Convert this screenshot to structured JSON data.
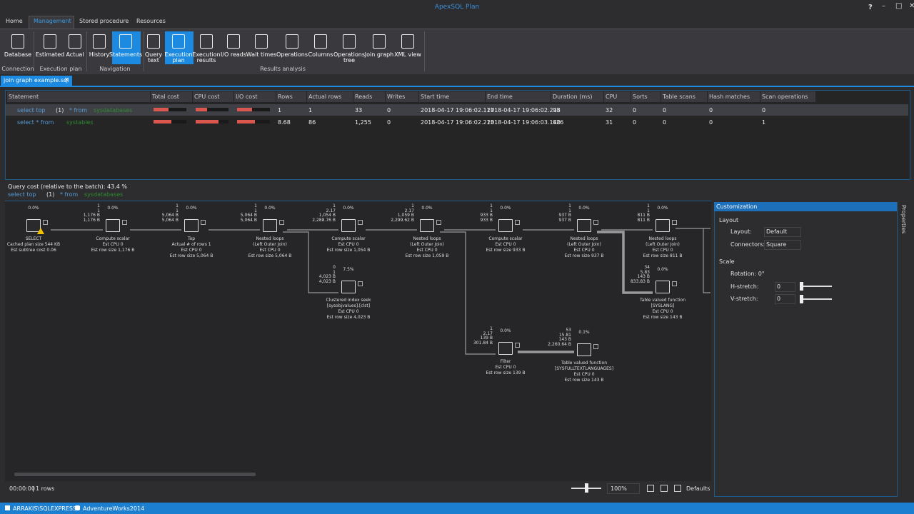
{
  "app_title": "ApexSQL Plan",
  "window_controls": [
    "?"
  ],
  "menu_tabs": [
    "Home",
    "Management",
    "Stored procedure",
    "Resources"
  ],
  "ribbon": {
    "groups": [
      {
        "label": "Connection",
        "buttons": [
          {
            "label": [
              "Database"
            ]
          }
        ]
      },
      {
        "label": "Execution plan",
        "buttons": [
          {
            "label": [
              "Estimated"
            ]
          },
          {
            "label": [
              "Actual"
            ]
          }
        ]
      },
      {
        "label": "Navigation",
        "buttons": [
          {
            "label": [
              "History"
            ]
          },
          {
            "label": [
              "Statements"
            ]
          }
        ]
      },
      {
        "label": "Results analysis",
        "buttons": [
          {
            "label": [
              "Query",
              "text"
            ]
          },
          {
            "label": [
              "Execution",
              "plan"
            ]
          },
          {
            "label": [
              "Execution",
              "results"
            ]
          },
          {
            "label": [
              "I/O reads"
            ]
          },
          {
            "label": [
              "Wait times"
            ]
          },
          {
            "label": [
              "Operations"
            ]
          },
          {
            "label": [
              "Columns"
            ]
          },
          {
            "label": [
              "Operations",
              "tree"
            ]
          },
          {
            "label": [
              "Join graph"
            ]
          },
          {
            "label": [
              "XML view"
            ]
          }
        ]
      }
    ]
  },
  "document_tab": "join graph example.sql",
  "statements_table": {
    "columns": [
      "Statement",
      "Total cost",
      "CPU cost",
      "I/O cost",
      "Rows",
      "Actual rows",
      "Reads",
      "Writes",
      "Start time",
      "End time",
      "Duration (ms)",
      "CPU",
      "Sorts",
      "Table scans",
      "Hash matches",
      "Scan operations"
    ],
    "rows": [
      {
        "statement": [
          {
            "text": "select top",
            "color": "#569cd6"
          },
          {
            "text": "(1)",
            "color": "#e0e0e0"
          },
          {
            "text": "* from",
            "color": "#569cd6"
          },
          {
            "text": "sysdatabases",
            "color": "#2e8b2e"
          }
        ],
        "costs": [
          45,
          35,
          45
        ],
        "cells": [
          "1",
          "1",
          "33",
          "0",
          "2018-04-17 19:06:02.117",
          "2018-04-17 19:06:02.213",
          "98",
          "32",
          "0",
          "0",
          "0",
          "0"
        ]
      },
      {
        "statement": [
          {
            "text": "select * from",
            "color": "#569cd6"
          },
          {
            "text": "systables",
            "color": "#2e8b2e"
          }
        ],
        "costs": [
          55,
          70,
          55
        ],
        "cells": [
          "8.68",
          "86",
          "1,255",
          "0",
          "2018-04-17 19:06:02.213",
          "2018-04-17 19:06:03.140",
          "926",
          "31",
          "0",
          "0",
          "0",
          "1"
        ]
      }
    ]
  },
  "query_cost": "Query cost (relative to the batch):  43.4 %",
  "query_text": [
    {
      "text": "select top",
      "color": "#569cd6"
    },
    {
      "text": "(1)",
      "color": "#e0e0e0"
    },
    {
      "text": "* from",
      "color": "#569cd6"
    },
    {
      "text": "sysdatabases",
      "color": "#2e8b2e"
    }
  ],
  "plan_nodes": [
    {
      "percent": "0.0%",
      "stats": [],
      "lines": [
        "SELECT",
        "Cached plan size  544 KB",
        "Est subtree cost  0.06"
      ]
    },
    {
      "percent": "0.0%",
      "stats": [
        "1",
        "1",
        "1,176 B",
        "1,176 B"
      ],
      "lines": [
        "Compute scalar",
        "Est CPU  0",
        "Est row size  1,176 B"
      ]
    },
    {
      "percent": "0.0%",
      "stats": [
        "1",
        "1",
        "5,064 B",
        "5,064 B"
      ],
      "lines": [
        "Top",
        "Actual # of rows  1",
        "Est CPU  0",
        "Est row size  5,064 B"
      ]
    },
    {
      "percent": "0.0%",
      "stats": [
        "1",
        "1",
        "5,064 B",
        "5,064 B"
      ],
      "lines": [
        "Nested loops",
        "(Left Outer Join)",
        "Est CPU  0",
        "Est row size  5,064 B"
      ]
    },
    {
      "percent": "0.0%",
      "stats": [
        "1",
        "2.17",
        "1,054 B",
        "2,288.76 B"
      ],
      "lines": [
        "Compute scalar",
        "Est CPU  0",
        "Est row size  1,054 B"
      ]
    },
    {
      "percent": "0.0%",
      "stats": [
        "1",
        "2.17",
        "1,059 B",
        "2,299.62 B"
      ],
      "lines": [
        "Nested loops",
        "(Left Outer Join)",
        "Est CPU  0",
        "Est row size  1,059 B"
      ]
    },
    {
      "percent": "0.0%",
      "stats": [
        "1",
        "1",
        "933 B",
        "933 B"
      ],
      "lines": [
        "Compute scalar",
        "Est CPU  0",
        "Est row size  933 B"
      ]
    },
    {
      "percent": "0.0%",
      "stats": [
        "1",
        "1",
        "937 B",
        "937 B"
      ],
      "lines": [
        "Nested loops",
        "(Left Outer Join)",
        "Est CPU  0",
        "Est row size  937 B"
      ]
    },
    {
      "percent": "0.0%",
      "stats": [
        "1",
        "1",
        "811 B",
        "811 B"
      ],
      "lines": [
        "Nested loops",
        "(Left Outer Join)",
        "Est CPU  0",
        "Est row size  811 B"
      ]
    },
    {
      "percent": "7.5%",
      "stats": [
        "0",
        "1",
        "4,023 B",
        "4,023 B"
      ],
      "lines": [
        "Clustered index seek",
        "[sysobjvalues].[clst]",
        "Est CPU  0",
        "Est row size  4,023 B"
      ]
    },
    {
      "percent": "0.0%",
      "stats": [
        "34",
        "5.83",
        "143 B",
        "833.83 B"
      ],
      "lines": [
        "Table valued function",
        "[SYSLANG]",
        "Est CPU  0",
        "Est row size  143 B"
      ]
    },
    {
      "percent": "0.0%",
      "stats": [
        "1",
        "2.17",
        "139 B",
        "301.84 B"
      ],
      "lines": [
        "Filter",
        "Est CPU  0",
        "Est row size  139 B"
      ]
    },
    {
      "percent": "0.1%",
      "stats": [
        "53",
        "15.81",
        "143 B",
        "2,260.64 B"
      ],
      "lines": [
        "Table valued function",
        "[SYSFULLTEXTLANGUAGES]",
        "Est CPU  0",
        "Est row size  143 B"
      ]
    }
  ],
  "customization": {
    "title": "Customization",
    "layout_heading": "Layout",
    "layout_label": "Layout:",
    "layout_value": "Default",
    "connectors_label": "Connectors:",
    "connectors_value": "Square",
    "scale_heading": "Scale",
    "rotation_label": "Rotation: 0°",
    "hstretch_label": "H-stretch:",
    "hstretch_value": "0",
    "vstretch_label": "V-stretch:",
    "vstretch_value": "0"
  },
  "properties_tab": "Properties",
  "footer": {
    "time": "00:00:00",
    "rows": "1 rows",
    "zoom": "100%",
    "defaults": "Defaults"
  },
  "status_bar": {
    "server": "ARRAKIS\\SQLEXPRESS",
    "database": "AdventureWorks2014"
  }
}
